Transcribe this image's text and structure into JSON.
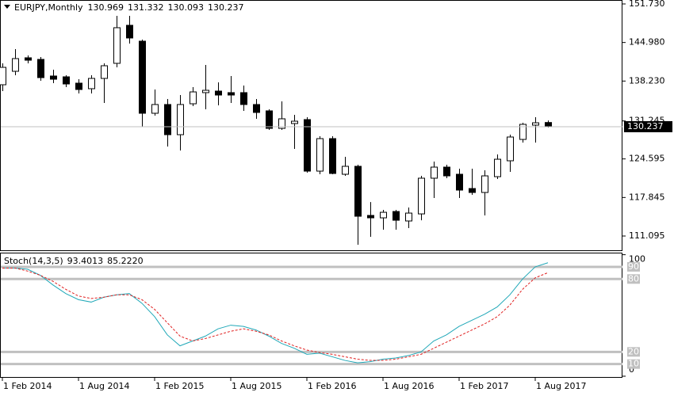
{
  "chart_data": [
    {
      "type": "candlestick",
      "title": "EURJPY,Monthly",
      "categories": [
        "1 Feb 2014",
        null,
        null,
        null,
        null,
        null,
        "1 Aug 2014",
        null,
        null,
        null,
        null,
        null,
        "1 Feb 2015",
        null,
        null,
        null,
        null,
        null,
        "1 Aug 2015",
        null,
        null,
        null,
        null,
        null,
        "1 Feb 2016",
        null,
        null,
        null,
        null,
        null,
        "1 Aug 2016",
        null,
        null,
        null,
        null,
        null,
        "1 Feb 2017",
        null,
        null,
        null,
        null,
        null,
        "1 Aug 2017",
        null
      ],
      "open": [
        137.58,
        139.94,
        142.3,
        142.02,
        139.11,
        138.97,
        137.86,
        136.89,
        138.69,
        141.33,
        147.99,
        145.21,
        132.59,
        134.12,
        128.84,
        134.25,
        136.2,
        136.47,
        136.2,
        136.2,
        134.12,
        133.01,
        129.95,
        130.79,
        131.48,
        122.46,
        128.15,
        121.91,
        123.3,
        114.7,
        114.28,
        115.39,
        113.73,
        114.97,
        121.22,
        123.16,
        121.91,
        119.41,
        118.72,
        121.49,
        124.27,
        128.01,
        130.51,
        130.969
      ],
      "high": [
        141.33,
        143.82,
        142.71,
        142.44,
        140.22,
        139.25,
        138.55,
        139.25,
        141.33,
        149.65,
        149.65,
        145.49,
        136.75,
        135.09,
        135.78,
        137.17,
        141.05,
        138.0,
        139.11,
        137.44,
        135.09,
        133.28,
        134.67,
        132.31,
        131.9,
        128.57,
        128.57,
        124.96,
        123.57,
        117.05,
        115.67,
        115.67,
        116.08,
        121.63,
        124.13,
        123.57,
        122.88,
        122.88,
        122.6,
        125.38,
        128.84,
        130.92,
        131.9,
        131.332
      ],
      "low": [
        136.47,
        139.25,
        141.33,
        138.28,
        137.86,
        137.17,
        136.06,
        136.06,
        134.39,
        140.63,
        144.79,
        130.23,
        132.17,
        126.76,
        126.07,
        133.84,
        133.28,
        133.98,
        134.39,
        133.01,
        131.62,
        129.68,
        129.68,
        126.35,
        122.19,
        121.91,
        121.91,
        121.63,
        109.57,
        110.95,
        112.2,
        112.2,
        112.48,
        113.86,
        117.75,
        121.22,
        117.75,
        118.3,
        114.7,
        121.08,
        122.33,
        127.46,
        127.46,
        130.093
      ],
      "close": [
        140.63,
        142.16,
        141.88,
        138.83,
        138.55,
        137.72,
        136.75,
        138.69,
        140.91,
        147.57,
        145.77,
        132.59,
        134.12,
        128.84,
        134.12,
        136.33,
        136.61,
        135.78,
        135.78,
        134.12,
        132.73,
        129.95,
        131.62,
        131.2,
        122.46,
        128.15,
        122.05,
        123.3,
        114.56,
        114.28,
        115.25,
        113.86,
        115.11,
        121.22,
        123.16,
        121.63,
        119.14,
        118.72,
        121.63,
        124.54,
        128.43,
        130.65,
        130.92,
        130.237
      ],
      "up_color": "#ffffff",
      "down_color": "#000000",
      "ylim": [
        108.6,
        152.42
      ],
      "yticks": [
        {
          "value": 151.73,
          "label": "151.730"
        },
        {
          "value": 144.98,
          "label": "144.980"
        },
        {
          "value": 138.23,
          "label": "138.230"
        },
        131.245,
        124.595,
        117.845,
        111.095
      ]
    },
    {
      "type": "line",
      "title": "Stoch(14,3,5)",
      "series": [
        {
          "color": "#20a8b8",
          "values": [
            89,
            89,
            88,
            83,
            75,
            68,
            63,
            61,
            65,
            67,
            68,
            60,
            49,
            34,
            25,
            29,
            33,
            39,
            42,
            41,
            38,
            33,
            27,
            23,
            18,
            19,
            16,
            13,
            11,
            12,
            14,
            15,
            17,
            20,
            29,
            34,
            41,
            46,
            51,
            57,
            67,
            80,
            90,
            93.4013
          ]
        },
        {
          "color": "#e02020",
          "dashed": true,
          "values": [
            89,
            89,
            86.5,
            83,
            78,
            71.5,
            66,
            64,
            65,
            67,
            67,
            63,
            55,
            44,
            33,
            29,
            31,
            34,
            37,
            39,
            37,
            34,
            29,
            25,
            21.5,
            19.5,
            18,
            16,
            14,
            13,
            13,
            14,
            16,
            18,
            23,
            28,
            33,
            38,
            43,
            49,
            58.5,
            71.5,
            81,
            85.222
          ],
          "value_labels": [
            null,
            null,
            null,
            null,
            null,
            null,
            null,
            null,
            null,
            null,
            null,
            null,
            null,
            null,
            null,
            null,
            null,
            null,
            null,
            null,
            null,
            null,
            null,
            null,
            null,
            null,
            null,
            null,
            null,
            null,
            null,
            null,
            null,
            null,
            null,
            null,
            null,
            null,
            null,
            null,
            null,
            null,
            null,
            "85.2220"
          ]
        }
      ],
      "ylim": [
        0,
        100
      ],
      "yticks": [
        0,
        10,
        20,
        80,
        90,
        100
      ]
    }
  ]
}
